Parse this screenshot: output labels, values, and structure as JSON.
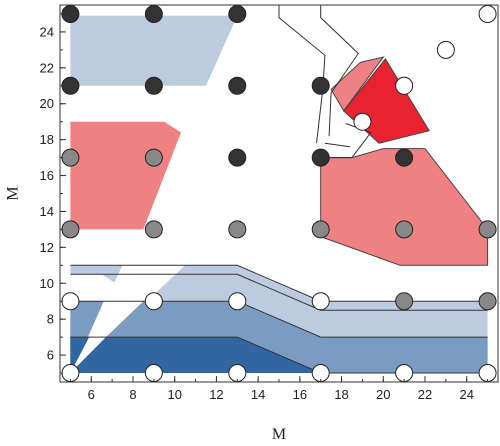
{
  "chart_data": {
    "type": "scatter",
    "xlabel": "M",
    "ylabel": "M",
    "xlim": [
      4.5,
      25.5
    ],
    "ylim": [
      4.5,
      25.5
    ],
    "xticks": [
      {
        "value": 6,
        "label": "6"
      },
      {
        "value": 8,
        "label": "8"
      },
      {
        "value": 10,
        "label": "10"
      },
      {
        "value": 12,
        "label": "12"
      },
      {
        "value": 14,
        "label": "14"
      },
      {
        "value": 16,
        "label": "16"
      },
      {
        "value": 18,
        "label": "18"
      },
      {
        "value": 20,
        "label": "20"
      },
      {
        "value": 22,
        "label": "22"
      },
      {
        "value": 24,
        "label": "24"
      }
    ],
    "yticks": [
      {
        "value": 6,
        "label": "6"
      },
      {
        "value": 8,
        "label": "8"
      },
      {
        "value": 10,
        "label": "10"
      },
      {
        "value": 12,
        "label": "12"
      },
      {
        "value": 14,
        "label": "14"
      },
      {
        "value": 16,
        "label": "16"
      },
      {
        "value": 18,
        "label": "18"
      },
      {
        "value": 20,
        "label": "20"
      },
      {
        "value": 22,
        "label": "22"
      },
      {
        "value": 24,
        "label": "24"
      }
    ],
    "minor_tick_step": 1,
    "grid": false,
    "point_colors": {
      "black": "#333333",
      "gray": "#888888",
      "white": "#ffffff"
    },
    "points": [
      {
        "x": 5,
        "y": 25,
        "tone": "black"
      },
      {
        "x": 9,
        "y": 25,
        "tone": "black"
      },
      {
        "x": 13,
        "y": 25,
        "tone": "black"
      },
      {
        "x": 23,
        "y": 23,
        "tone": "white"
      },
      {
        "x": 25,
        "y": 25,
        "tone": "white"
      },
      {
        "x": 5,
        "y": 21,
        "tone": "black"
      },
      {
        "x": 9,
        "y": 21,
        "tone": "black"
      },
      {
        "x": 13,
        "y": 21,
        "tone": "black"
      },
      {
        "x": 17,
        "y": 21,
        "tone": "black"
      },
      {
        "x": 21,
        "y": 21,
        "tone": "white"
      },
      {
        "x": 19,
        "y": 19,
        "tone": "white"
      },
      {
        "x": 5,
        "y": 17,
        "tone": "gray"
      },
      {
        "x": 9,
        "y": 17,
        "tone": "gray"
      },
      {
        "x": 13,
        "y": 17,
        "tone": "black"
      },
      {
        "x": 17,
        "y": 17,
        "tone": "black"
      },
      {
        "x": 21,
        "y": 17,
        "tone": "black"
      },
      {
        "x": 5,
        "y": 13,
        "tone": "gray"
      },
      {
        "x": 9,
        "y": 13,
        "tone": "gray"
      },
      {
        "x": 13,
        "y": 13,
        "tone": "gray"
      },
      {
        "x": 17,
        "y": 13,
        "tone": "gray"
      },
      {
        "x": 21,
        "y": 13,
        "tone": "gray"
      },
      {
        "x": 25,
        "y": 13,
        "tone": "gray"
      },
      {
        "x": 5,
        "y": 9,
        "tone": "white"
      },
      {
        "x": 9,
        "y": 9,
        "tone": "white"
      },
      {
        "x": 13,
        "y": 9,
        "tone": "white"
      },
      {
        "x": 17,
        "y": 9,
        "tone": "white"
      },
      {
        "x": 21,
        "y": 9,
        "tone": "gray"
      },
      {
        "x": 25,
        "y": 9,
        "tone": "gray"
      },
      {
        "x": 5,
        "y": 5,
        "tone": "white"
      },
      {
        "x": 9,
        "y": 5,
        "tone": "white"
      },
      {
        "x": 13,
        "y": 5,
        "tone": "white"
      },
      {
        "x": 17,
        "y": 5,
        "tone": "white"
      },
      {
        "x": 21,
        "y": 5,
        "tone": "white"
      },
      {
        "x": 25,
        "y": 5,
        "tone": "white"
      }
    ],
    "regions": [
      {
        "fill": "#bccbdf",
        "stroke": null,
        "points": [
          [
            5,
            11
          ],
          [
            13,
            11
          ],
          [
            17,
            9
          ],
          [
            25,
            9
          ],
          [
            25,
            5
          ],
          [
            5,
            5
          ]
        ]
      },
      {
        "fill": "#ffffff",
        "stroke": null,
        "points": [
          [
            5,
            5
          ],
          [
            7.5,
            11
          ],
          [
            10.5,
            11
          ]
        ]
      },
      {
        "fill": "#7a9cc2",
        "stroke": null,
        "points": [
          [
            5,
            9
          ],
          [
            13,
            9
          ],
          [
            17,
            7
          ],
          [
            25,
            7
          ],
          [
            25,
            5
          ],
          [
            5,
            5
          ]
        ]
      },
      {
        "fill": "#3266a0",
        "stroke": null,
        "points": [
          [
            5,
            7
          ],
          [
            13,
            7
          ],
          [
            17,
            5
          ],
          [
            5,
            5
          ]
        ]
      },
      {
        "fill": "#ffffff",
        "stroke": null,
        "points": [
          [
            5,
            5
          ],
          [
            5,
            10.5
          ],
          [
            6.5,
            10.5
          ],
          [
            8.5,
            9
          ],
          [
            6.7,
            7
          ]
        ]
      },
      {
        "fill": "#7a9cc2",
        "stroke": null,
        "points": [
          [
            5,
            5
          ],
          [
            5,
            9
          ],
          [
            6.6,
            9
          ],
          [
            5.8,
            6.9
          ]
        ]
      },
      {
        "fill": "#3266a0",
        "stroke": null,
        "points": [
          [
            5,
            5
          ],
          [
            5,
            7
          ],
          [
            5.9,
            7
          ]
        ]
      },
      {
        "fill": "#bccbdf",
        "stroke": null,
        "points": [
          [
            5,
            24.9
          ],
          [
            13,
            24.9
          ],
          [
            11.5,
            21
          ],
          [
            5,
            21
          ]
        ]
      },
      {
        "fill": "#f08183",
        "stroke": null,
        "points": [
          [
            5,
            19
          ],
          [
            9.5,
            19
          ],
          [
            10.3,
            18.4
          ],
          [
            8.5,
            13
          ],
          [
            5,
            13
          ]
        ]
      },
      {
        "fill": "#f08183",
        "stroke": "#444444",
        "points": [
          [
            17,
            17
          ],
          [
            18.5,
            17
          ],
          [
            20,
            17.5
          ],
          [
            22,
            17.5
          ],
          [
            25,
            13
          ],
          [
            25,
            11
          ],
          [
            20.8,
            11
          ],
          [
            17,
            12.6
          ]
        ]
      },
      {
        "fill": "#f08183",
        "stroke": "#444444",
        "points": [
          [
            18.9,
            22.3
          ],
          [
            20,
            22.6
          ],
          [
            18.1,
            19.6
          ],
          [
            17.5,
            20.8
          ]
        ]
      },
      {
        "fill": "#e8222e",
        "stroke": "#444444",
        "points": [
          [
            20.1,
            22.5
          ],
          [
            22.2,
            18.5
          ],
          [
            19.8,
            17.8
          ],
          [
            18.1,
            19.6
          ]
        ]
      }
    ],
    "lines": [
      {
        "color": "#333333",
        "points": [
          [
            5,
            11
          ],
          [
            13,
            11
          ],
          [
            17,
            9
          ],
          [
            25,
            9
          ]
        ]
      },
      {
        "color": "#333333",
        "points": [
          [
            5,
            9
          ],
          [
            13,
            9
          ],
          [
            17,
            7
          ],
          [
            25,
            7
          ]
        ]
      },
      {
        "color": "#333333",
        "points": [
          [
            5,
            7
          ],
          [
            13,
            7
          ],
          [
            17,
            5
          ],
          [
            25,
            5
          ]
        ]
      },
      {
        "color": "#333333",
        "points": [
          [
            5,
            10.5
          ],
          [
            13,
            10.5
          ],
          [
            17,
            8.5
          ],
          [
            25,
            8.5
          ]
        ]
      },
      {
        "color": "#333333",
        "points": [
          [
            15,
            25.5
          ],
          [
            15,
            24.8
          ],
          [
            17.2,
            22.7
          ],
          [
            17.1,
            20.8
          ],
          [
            16.8,
            17.8
          ]
        ]
      },
      {
        "color": "#333333",
        "points": [
          [
            17,
            25.5
          ],
          [
            17,
            24.8
          ],
          [
            18.8,
            22.8
          ],
          [
            17.5,
            20.6
          ],
          [
            17.4,
            18.2
          ]
        ]
      },
      {
        "color": "#333333",
        "points": [
          [
            17,
            17
          ],
          [
            18.5,
            17
          ],
          [
            19.4,
            18.4
          ],
          [
            18.2,
            18.9
          ]
        ]
      },
      {
        "color": "#333333",
        "points": [
          [
            17.2,
            17.8
          ],
          [
            18.4,
            17.6
          ]
        ]
      }
    ]
  }
}
